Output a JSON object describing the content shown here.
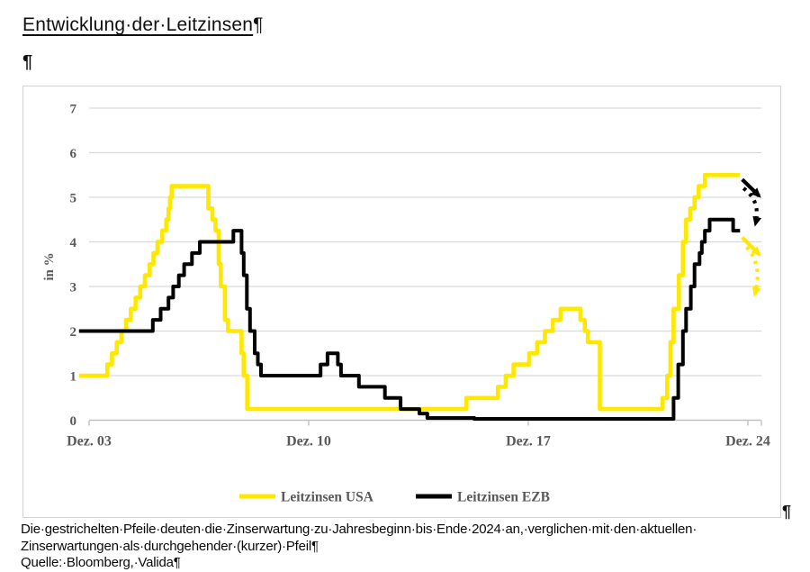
{
  "document": {
    "title": "Entwicklung·der·Leitzinsen",
    "pilcrow": "¶",
    "caption": {
      "line1": "Die·gestrichelten·Pfeile·deuten·die·Zinserwartung·zu·Jahresbeginn·bis·Ende·2024·an,·verglichen·mit·den·aktuellen·",
      "line2": "Zinserwartungen·als·durchgehender·(kurzer)·Pfeil¶",
      "source": "Quelle:·Bloomberg,·Valida¶"
    }
  },
  "chart_data": {
    "type": "line",
    "title": "",
    "xlabel": "",
    "ylabel": "in %",
    "ylim": [
      0,
      7
    ],
    "yticks": [
      0,
      1,
      2,
      3,
      4,
      5,
      6,
      7
    ],
    "xticks": [
      {
        "year": 2003.92,
        "label": "Dez. 03"
      },
      {
        "year": 2010.92,
        "label": "Dez. 10"
      },
      {
        "year": 2017.92,
        "label": "Dez. 17"
      },
      {
        "year": 2024.92,
        "label": "Dez. 24"
      }
    ],
    "grid": "horizontal",
    "legend_position": "bottom",
    "colors": {
      "usa": "#FFE800",
      "ezb": "#000000",
      "axis_text": "#595959",
      "gridline": "#D9D9D9",
      "axis_line": "#BFBFBF"
    },
    "series": [
      {
        "name": "Leitzinsen USA",
        "color_key": "usa",
        "steps": [
          [
            2003.6,
            1.0
          ],
          [
            2004.5,
            1.25
          ],
          [
            2004.65,
            1.5
          ],
          [
            2004.8,
            1.75
          ],
          [
            2004.95,
            2.0
          ],
          [
            2005.1,
            2.25
          ],
          [
            2005.25,
            2.5
          ],
          [
            2005.4,
            2.75
          ],
          [
            2005.55,
            3.0
          ],
          [
            2005.7,
            3.25
          ],
          [
            2005.85,
            3.5
          ],
          [
            2005.97,
            3.75
          ],
          [
            2006.1,
            4.0
          ],
          [
            2006.25,
            4.25
          ],
          [
            2006.38,
            4.5
          ],
          [
            2006.45,
            4.75
          ],
          [
            2006.5,
            5.0
          ],
          [
            2006.55,
            5.25
          ],
          [
            2007.72,
            4.75
          ],
          [
            2007.85,
            4.5
          ],
          [
            2007.95,
            4.25
          ],
          [
            2008.05,
            3.5
          ],
          [
            2008.12,
            3.0
          ],
          [
            2008.25,
            2.25
          ],
          [
            2008.35,
            2.0
          ],
          [
            2008.78,
            1.5
          ],
          [
            2008.85,
            1.0
          ],
          [
            2008.96,
            0.25
          ],
          [
            2015.95,
            0.5
          ],
          [
            2016.95,
            0.75
          ],
          [
            2017.2,
            1.0
          ],
          [
            2017.45,
            1.25
          ],
          [
            2017.95,
            1.5
          ],
          [
            2018.2,
            1.75
          ],
          [
            2018.45,
            2.0
          ],
          [
            2018.7,
            2.25
          ],
          [
            2018.95,
            2.5
          ],
          [
            2019.58,
            2.25
          ],
          [
            2019.72,
            2.0
          ],
          [
            2019.82,
            1.75
          ],
          [
            2020.2,
            0.25
          ],
          [
            2022.2,
            0.5
          ],
          [
            2022.35,
            1.0
          ],
          [
            2022.45,
            1.75
          ],
          [
            2022.55,
            2.5
          ],
          [
            2022.72,
            3.25
          ],
          [
            2022.85,
            4.0
          ],
          [
            2022.95,
            4.5
          ],
          [
            2023.08,
            4.75
          ],
          [
            2023.22,
            5.0
          ],
          [
            2023.35,
            5.25
          ],
          [
            2023.55,
            5.5
          ],
          [
            2024.67,
            5.5
          ]
        ]
      },
      {
        "name": "Leitzinsen EZB",
        "color_key": "ezb",
        "steps": [
          [
            2003.6,
            2.0
          ],
          [
            2005.95,
            2.25
          ],
          [
            2006.2,
            2.5
          ],
          [
            2006.45,
            2.75
          ],
          [
            2006.6,
            3.0
          ],
          [
            2006.78,
            3.25
          ],
          [
            2006.95,
            3.5
          ],
          [
            2007.2,
            3.75
          ],
          [
            2007.45,
            4.0
          ],
          [
            2008.52,
            4.25
          ],
          [
            2008.78,
            3.75
          ],
          [
            2008.85,
            3.25
          ],
          [
            2008.95,
            2.5
          ],
          [
            2009.05,
            2.0
          ],
          [
            2009.2,
            1.5
          ],
          [
            2009.3,
            1.25
          ],
          [
            2009.4,
            1.0
          ],
          [
            2011.3,
            1.25
          ],
          [
            2011.52,
            1.5
          ],
          [
            2011.85,
            1.25
          ],
          [
            2011.95,
            1.0
          ],
          [
            2012.52,
            0.75
          ],
          [
            2013.35,
            0.5
          ],
          [
            2013.85,
            0.25
          ],
          [
            2014.45,
            0.15
          ],
          [
            2014.7,
            0.05
          ],
          [
            2016.2,
            0.03
          ],
          [
            2022.55,
            0.5
          ],
          [
            2022.7,
            1.25
          ],
          [
            2022.85,
            2.0
          ],
          [
            2022.95,
            2.5
          ],
          [
            2023.1,
            3.0
          ],
          [
            2023.22,
            3.5
          ],
          [
            2023.38,
            3.75
          ],
          [
            2023.45,
            4.0
          ],
          [
            2023.55,
            4.25
          ],
          [
            2023.7,
            4.5
          ],
          [
            2024.45,
            4.25
          ],
          [
            2024.67,
            4.25
          ]
        ]
      }
    ],
    "annotations": [
      {
        "name": "usa-current-expectation-arrow",
        "style": "solid",
        "color": "#000000",
        "from": [
          2024.74,
          5.4
        ],
        "to": [
          2025.28,
          5.03
        ]
      },
      {
        "name": "usa-yearstart-expectation-arrow",
        "style": "dashed",
        "color": "#000000",
        "from": [
          2024.78,
          5.2
        ],
        "ctrl": [
          2025.34,
          4.92
        ],
        "to": [
          2025.16,
          4.4
        ]
      },
      {
        "name": "ezb-current-expectation-arrow",
        "style": "solid",
        "color": "#FFE800",
        "from": [
          2024.74,
          4.1
        ],
        "to": [
          2025.28,
          3.72
        ]
      },
      {
        "name": "ezb-yearstart-expectation-arrow",
        "style": "dashed",
        "color": "#FFE800",
        "from": [
          2024.88,
          3.88
        ],
        "ctrl": [
          2025.4,
          3.48
        ],
        "to": [
          2025.14,
          2.82
        ]
      }
    ]
  }
}
